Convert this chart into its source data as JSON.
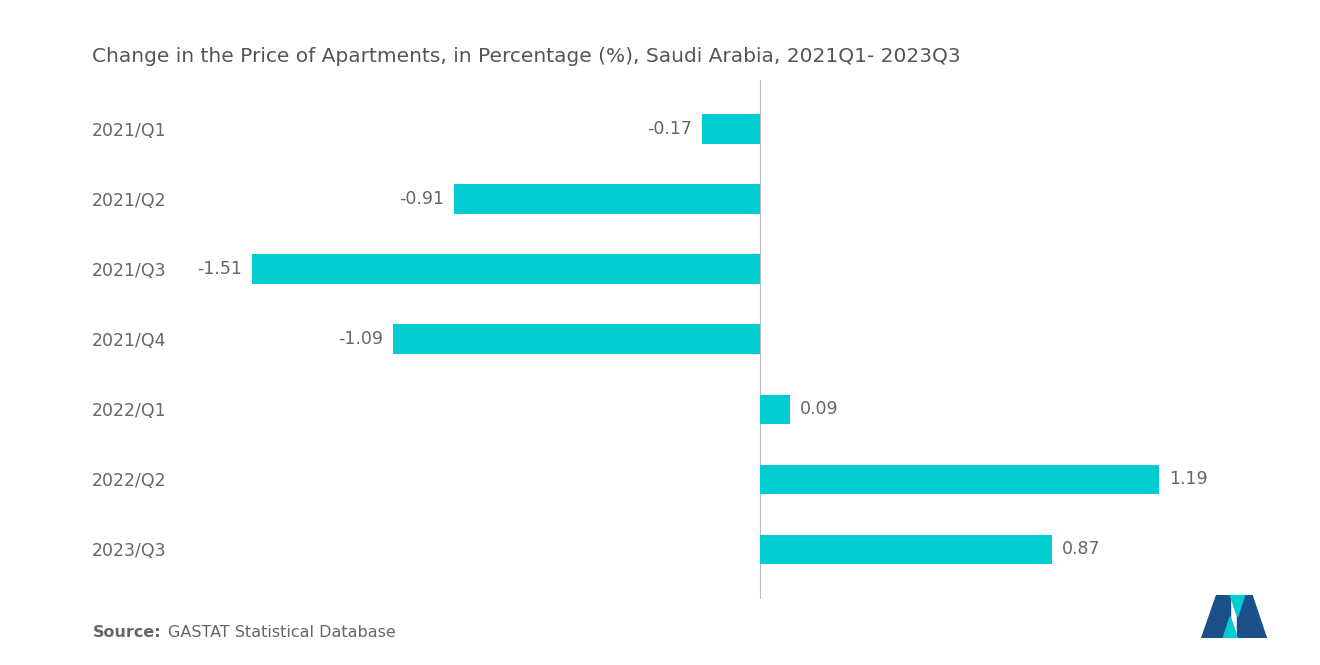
{
  "title": "Change in the Price of Apartments, in Percentage (%), Saudi Arabia, 2021Q1- 2023Q3",
  "categories": [
    "2021/Q1",
    "2021/Q2",
    "2021/Q3",
    "2021/Q4",
    "2022/Q1",
    "2022/Q2",
    "2023/Q3"
  ],
  "values": [
    -0.17,
    -0.91,
    -1.51,
    -1.09,
    0.09,
    1.19,
    0.87
  ],
  "bar_color": "#00CDD1",
  "label_color": "#666666",
  "title_color": "#555555",
  "background_color": "#ffffff",
  "xlim": [
    -1.75,
    1.55
  ],
  "bar_height": 0.42,
  "title_fontsize": 14.5,
  "label_fontsize": 12.5,
  "tick_fontsize": 12.5,
  "source_fontsize": 11.5
}
